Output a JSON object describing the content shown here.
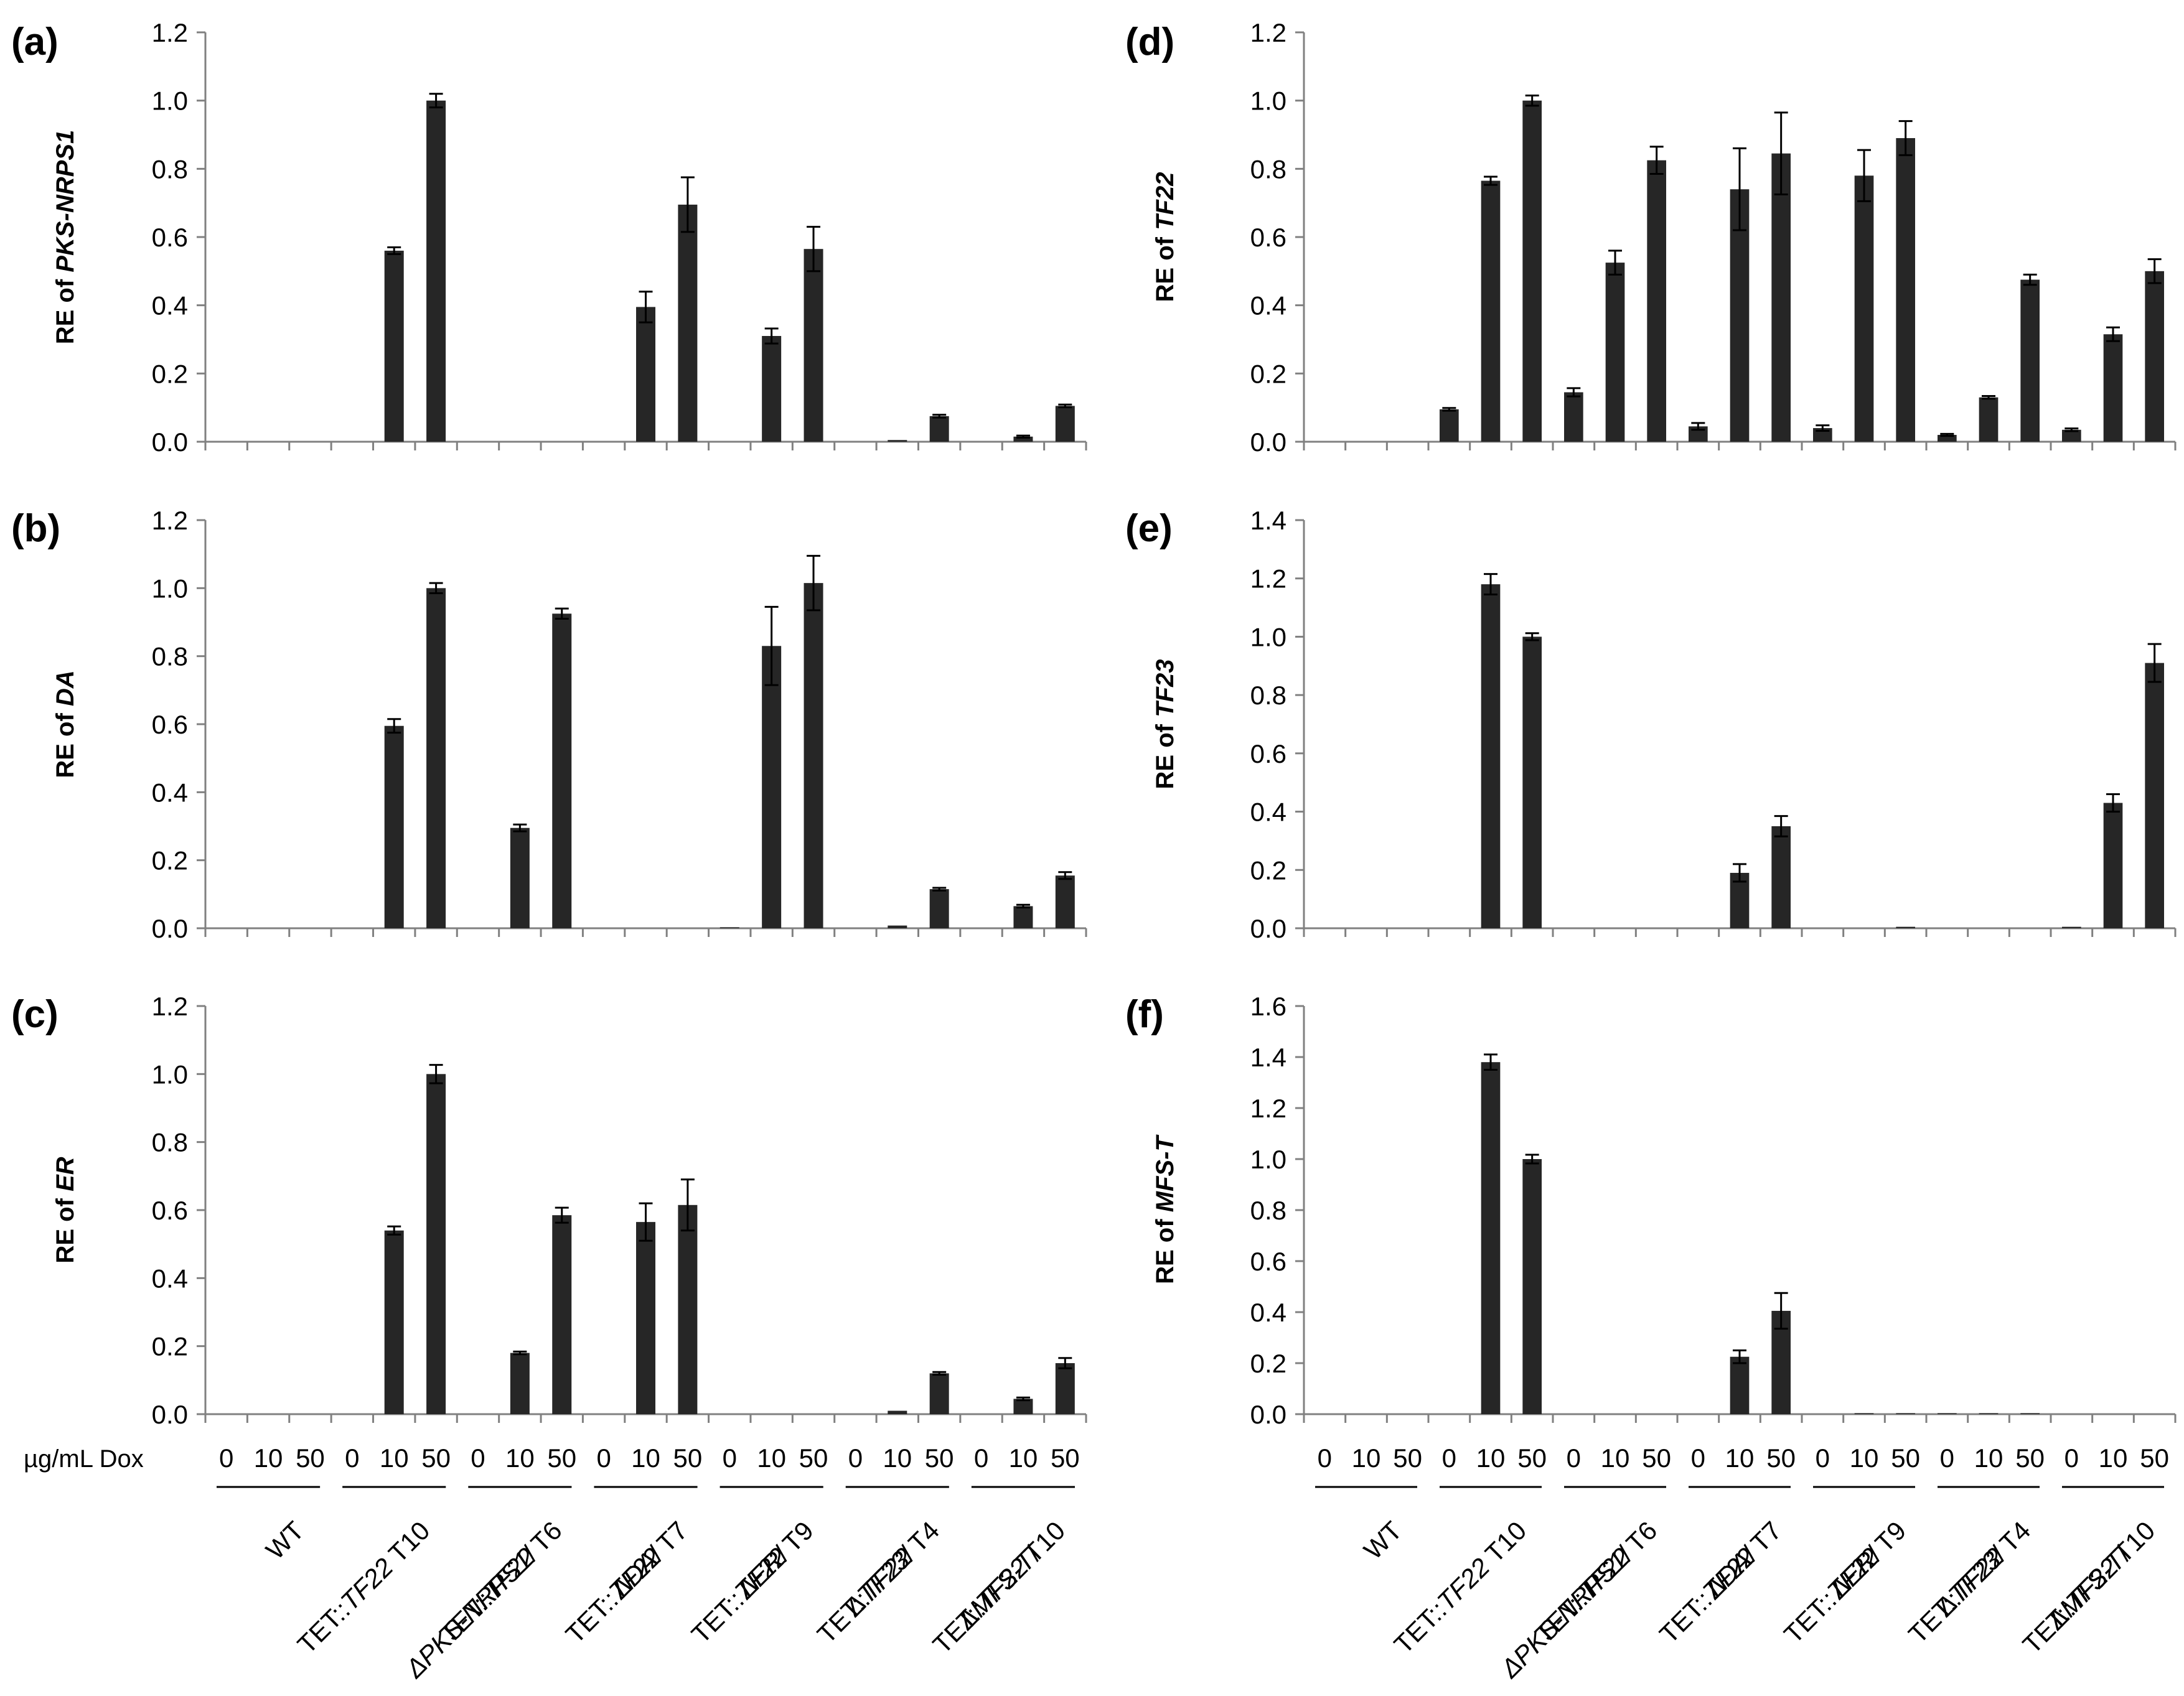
{
  "dose_caption": "µg/mL Dox",
  "dose_labels": [
    "0",
    "10",
    "50"
  ],
  "group_labels": [
    [
      {
        "t": "WT",
        "i": false
      }
    ],
    [
      {
        "t": "TET::",
        "i": false
      },
      {
        "t": "TF22",
        "i": true
      },
      {
        "t": " T10",
        "i": false
      }
    ],
    [
      {
        "t": "ΔPKS-NRPS1",
        "i": true
      },
      {
        "t": "/",
        "i": false
      }
    ],
    [
      {
        "t": "TET::",
        "i": false
      },
      {
        "t": "TF22",
        "i": true
      },
      {
        "t": " T6",
        "i": false
      }
    ],
    [
      {
        "t": "ΔDA",
        "i": true
      },
      {
        "t": "/",
        "i": false
      }
    ],
    [
      {
        "t": "TET::",
        "i": false
      },
      {
        "t": "TF22",
        "i": true
      },
      {
        "t": " T7",
        "i": false
      }
    ],
    [
      {
        "t": "ΔER",
        "i": true
      },
      {
        "t": "/",
        "i": false
      }
    ],
    [
      {
        "t": "TET::",
        "i": false
      },
      {
        "t": "TF22",
        "i": true
      },
      {
        "t": " T9",
        "i": false
      }
    ],
    [
      {
        "t": "ΔTF23",
        "i": true
      },
      {
        "t": "/",
        "i": false
      }
    ],
    [
      {
        "t": "TET::",
        "i": false
      },
      {
        "t": "TF22",
        "i": true
      },
      {
        "t": " T4",
        "i": false
      }
    ],
    [
      {
        "t": "ΔMFS-T",
        "i": true
      },
      {
        "t": "/",
        "i": false
      }
    ],
    [
      {
        "t": "TET::",
        "i": false
      },
      {
        "t": "TF22",
        "i": true
      },
      {
        "t": " T10",
        "i": false
      }
    ]
  ],
  "chart_data": [
    {
      "panel": "(a)",
      "type": "bar",
      "ylabel_prefix": "RE of ",
      "ylabel_gene": "PKS-NRPS1",
      "ylim": [
        0,
        1.2
      ],
      "yticks": [
        "0.0",
        "0.2",
        "0.4",
        "0.6",
        "0.8",
        "1.0",
        "1.2"
      ],
      "values": [
        0,
        0,
        0,
        0,
        0.56,
        1.0,
        0,
        0,
        0,
        0,
        0.395,
        0.695,
        0,
        0.31,
        0.565,
        0,
        0.005,
        0.075,
        0,
        0.015,
        0.105
      ],
      "errors": [
        0,
        0,
        0,
        0,
        0.01,
        0.02,
        0,
        0,
        0,
        0,
        0.045,
        0.08,
        0,
        0.022,
        0.065,
        0,
        0,
        0.004,
        0,
        0.003,
        0.004
      ]
    },
    {
      "panel": "(b)",
      "type": "bar",
      "ylabel_prefix": "RE of ",
      "ylabel_gene": "DA",
      "ylim": [
        0,
        1.2
      ],
      "yticks": [
        "0.0",
        "0.2",
        "0.4",
        "0.6",
        "0.8",
        "1.0",
        "1.2"
      ],
      "values": [
        0,
        0,
        0,
        0,
        0.595,
        1.0,
        0,
        0.295,
        0.925,
        0,
        0,
        0,
        0.003,
        0.83,
        1.015,
        0,
        0.008,
        0.115,
        0,
        0.065,
        0.155
      ],
      "errors": [
        0,
        0,
        0,
        0,
        0.02,
        0.015,
        0,
        0.01,
        0.015,
        0,
        0,
        0,
        0,
        0.115,
        0.08,
        0,
        0,
        0.004,
        0,
        0.004,
        0.01
      ]
    },
    {
      "panel": "(c)",
      "type": "bar",
      "ylabel_prefix": "RE of ",
      "ylabel_gene": "ER",
      "ylim": [
        0,
        1.2
      ],
      "yticks": [
        "0.0",
        "0.2",
        "0.4",
        "0.6",
        "0.8",
        "1.0",
        "1.2"
      ],
      "values": [
        0,
        0,
        0,
        0,
        0.54,
        1.0,
        0,
        0.18,
        0.585,
        0,
        0.565,
        0.615,
        0,
        0,
        0,
        0,
        0.01,
        0.12,
        0,
        0.045,
        0.15
      ],
      "errors": [
        0,
        0,
        0,
        0,
        0.012,
        0.027,
        0,
        0.004,
        0.022,
        0,
        0.055,
        0.075,
        0,
        0,
        0,
        0,
        0,
        0.004,
        0,
        0.004,
        0.015
      ]
    },
    {
      "panel": "(d)",
      "type": "bar",
      "ylabel_prefix": "RE of ",
      "ylabel_gene": "TF22",
      "ylim": [
        0,
        1.2
      ],
      "yticks": [
        "0.0",
        "0.2",
        "0.4",
        "0.6",
        "0.8",
        "1.0",
        "1.2"
      ],
      "values": [
        0,
        0,
        0,
        0.095,
        0.765,
        1.0,
        0.145,
        0.525,
        0.825,
        0.045,
        0.74,
        0.845,
        0.04,
        0.78,
        0.89,
        0.02,
        0.13,
        0.475,
        0.035,
        0.315,
        0.5
      ],
      "errors": [
        0,
        0,
        0,
        0.004,
        0.012,
        0.015,
        0.012,
        0.035,
        0.04,
        0.01,
        0.12,
        0.12,
        0.008,
        0.075,
        0.05,
        0.003,
        0.004,
        0.015,
        0.004,
        0.02,
        0.035
      ]
    },
    {
      "panel": "(e)",
      "type": "bar",
      "ylabel_prefix": "RE of ",
      "ylabel_gene": "TF23",
      "ylim": [
        0,
        1.4
      ],
      "yticks": [
        "0.0",
        "0.2",
        "0.4",
        "0.6",
        "0.8",
        "1.0",
        "1.2",
        "1.4"
      ],
      "values": [
        0,
        0,
        0,
        0,
        1.18,
        1.0,
        0,
        0,
        0,
        0,
        0.19,
        0.35,
        0,
        0,
        0.005,
        0,
        0,
        0,
        0.005,
        0.43,
        0.91
      ],
      "errors": [
        0,
        0,
        0,
        0,
        0.035,
        0.012,
        0,
        0,
        0,
        0,
        0.03,
        0.035,
        0,
        0,
        0,
        0,
        0,
        0,
        0,
        0.03,
        0.065
      ]
    },
    {
      "panel": "(f)",
      "type": "bar",
      "ylabel_prefix": "RE of ",
      "ylabel_gene": "MFS-T",
      "ylim": [
        0,
        1.6
      ],
      "yticks": [
        "0.0",
        "0.2",
        "0.4",
        "0.6",
        "0.8",
        "1.0",
        "1.2",
        "1.4",
        "1.6"
      ],
      "values": [
        0,
        0,
        0,
        0,
        1.38,
        1.0,
        0,
        0,
        0,
        0,
        0.225,
        0.405,
        0,
        0.004,
        0.004,
        0.004,
        0.004,
        0.004,
        0,
        0,
        0
      ],
      "errors": [
        0,
        0,
        0,
        0,
        0.03,
        0.017,
        0,
        0,
        0,
        0,
        0.025,
        0.07,
        0,
        0,
        0,
        0,
        0,
        0,
        0,
        0,
        0
      ]
    }
  ]
}
